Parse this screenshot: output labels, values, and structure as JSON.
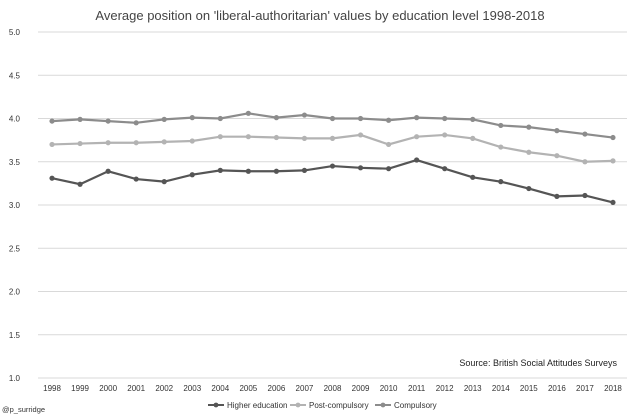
{
  "chart_data": {
    "type": "line",
    "title": "Average position on 'liberal-authoritarian' values by education level 1998-2018",
    "xlabel": "",
    "ylabel": "",
    "ylim": [
      1.0,
      5.0
    ],
    "yticks": [
      "1.0",
      "1.5",
      "2.0",
      "2.5",
      "3.0",
      "3.5",
      "4.0",
      "4.5",
      "5.0"
    ],
    "grid": true,
    "legend_position": "bottom",
    "categories": [
      "1998",
      "1999",
      "2000",
      "2001",
      "2002",
      "2003",
      "2004",
      "2005",
      "2006",
      "2007",
      "2008",
      "2009",
      "2010",
      "2011",
      "2012",
      "2013",
      "2014",
      "2015",
      "2016",
      "2017",
      "2018"
    ],
    "series": [
      {
        "name": "Higher education",
        "color": "#555555",
        "values": [
          3.31,
          3.24,
          3.39,
          3.3,
          3.27,
          3.35,
          3.4,
          3.39,
          3.39,
          3.4,
          3.45,
          3.43,
          3.42,
          3.52,
          3.42,
          3.32,
          3.27,
          3.19,
          3.1,
          3.11,
          3.03
        ]
      },
      {
        "name": "Post-compulsory",
        "color": "#b3b3b3",
        "values": [
          3.7,
          3.71,
          3.72,
          3.72,
          3.73,
          3.74,
          3.79,
          3.79,
          3.78,
          3.77,
          3.77,
          3.81,
          3.7,
          3.79,
          3.81,
          3.77,
          3.67,
          3.61,
          3.57,
          3.5,
          3.51
        ]
      },
      {
        "name": "Compulsory",
        "color": "#8c8c8c",
        "values": [
          3.97,
          3.99,
          3.97,
          3.95,
          3.99,
          4.01,
          4.0,
          4.06,
          4.01,
          4.04,
          4.0,
          4.0,
          3.98,
          4.01,
          4.0,
          3.99,
          3.92,
          3.9,
          3.86,
          3.82,
          3.78
        ]
      }
    ],
    "source": "Source: British Social Attitudes Surveys",
    "credit": "@p_surridge"
  }
}
